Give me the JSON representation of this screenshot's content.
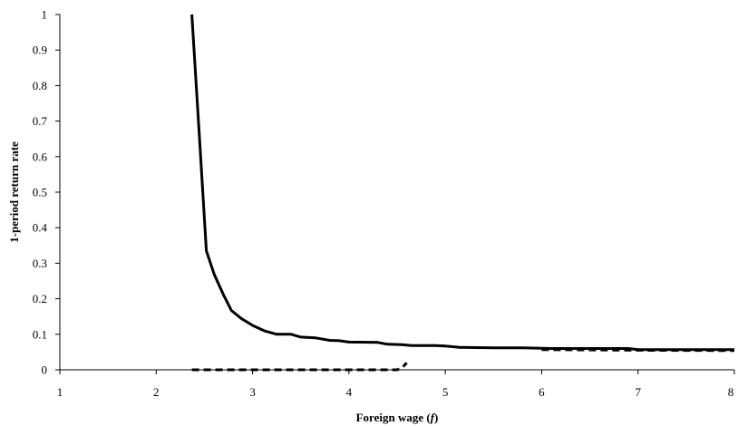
{
  "chart_data": {
    "type": "line",
    "title": "",
    "xlabel": "Foreign wage (f)",
    "xlabel_main": "Foreign wage (",
    "xlabel_var": "f",
    "xlabel_close": ")",
    "ylabel": "1-period return rate",
    "xlim": [
      1,
      8
    ],
    "ylim": [
      0,
      1
    ],
    "x_ticks": [
      1,
      2,
      3,
      4,
      5,
      6,
      7,
      8
    ],
    "y_ticks": [
      0,
      0.1,
      0.2,
      0.3,
      0.4,
      0.5,
      0.6,
      0.7,
      0.8,
      0.9,
      1
    ],
    "x_tick_labels": [
      "1",
      "2",
      "3",
      "4",
      "5",
      "6",
      "7",
      "8"
    ],
    "y_tick_labels": [
      "0",
      "0.1",
      "0.2",
      "0.3",
      "0.4",
      "0.5",
      "0.6",
      "0.7",
      "0.8",
      "0.9",
      "1"
    ],
    "grid": false,
    "legend": "none",
    "series": [
      {
        "style": "solid",
        "color": "#000000",
        "points": [
          [
            2.37,
            1.0
          ],
          [
            2.45,
            0.65
          ],
          [
            2.52,
            0.335
          ],
          [
            2.6,
            0.27
          ],
          [
            2.7,
            0.21
          ],
          [
            2.78,
            0.167
          ],
          [
            2.88,
            0.145
          ],
          [
            3.0,
            0.125
          ],
          [
            3.12,
            0.11
          ],
          [
            3.25,
            0.1
          ],
          [
            3.4,
            0.1
          ],
          [
            3.5,
            0.092
          ],
          [
            3.65,
            0.09
          ],
          [
            3.8,
            0.083
          ],
          [
            3.9,
            0.082
          ],
          [
            4.0,
            0.078
          ],
          [
            4.3,
            0.077
          ],
          [
            4.4,
            0.072
          ],
          [
            4.55,
            0.071
          ],
          [
            4.65,
            0.068
          ],
          [
            4.9,
            0.068
          ],
          [
            5.0,
            0.067
          ],
          [
            5.15,
            0.063
          ],
          [
            5.5,
            0.062
          ],
          [
            5.8,
            0.062
          ],
          [
            6.1,
            0.06
          ],
          [
            6.5,
            0.06
          ],
          [
            6.9,
            0.06
          ],
          [
            7.0,
            0.057
          ],
          [
            7.5,
            0.057
          ],
          [
            8.0,
            0.057
          ]
        ]
      },
      {
        "style": "dashed",
        "color": "#000000",
        "points": [
          [
            2.37,
            0.0
          ],
          [
            4.5,
            0.0
          ],
          [
            4.55,
            0.005
          ],
          [
            4.6,
            0.02
          ]
        ]
      },
      {
        "style": "dashed",
        "color": "#000000",
        "points": [
          [
            6.0,
            0.057
          ],
          [
            7.0,
            0.055
          ],
          [
            8.0,
            0.054
          ]
        ]
      }
    ]
  }
}
